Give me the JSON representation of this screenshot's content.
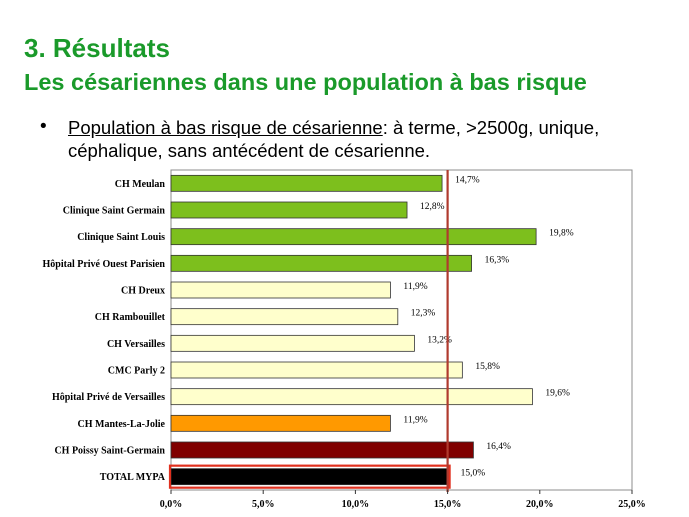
{
  "slide": {
    "title": "3. Résultats",
    "subtitle": "Les césariennes dans une population à bas risque",
    "bullet_marker": "•",
    "bullet_underlined": "Population à bas risque de césarienne",
    "bullet_rest": ": à terme, >2500g, unique, céphalique, sans antécédent de césarienne."
  },
  "chart_data": {
    "type": "bar",
    "orientation": "horizontal",
    "categories": [
      "CH Meulan",
      "Clinique Saint Germain",
      "Clinique Saint Louis",
      "Hôpital Privé Ouest Parisien",
      "CH Dreux",
      "CH Rambouillet",
      "CH Versailles",
      "CMC Parly 2",
      "Hôpital Privé de Versailles",
      "CH Mantes-La-Jolie",
      "CH Poissy Saint-Germain",
      "TOTAL MYPA"
    ],
    "values": [
      14.7,
      12.8,
      19.8,
      16.3,
      11.9,
      12.3,
      13.2,
      15.8,
      19.6,
      11.9,
      16.4,
      15.0
    ],
    "value_labels": [
      "14,7%",
      "12,8%",
      "19,8%",
      "16,3%",
      "11,9%",
      "12,3%",
      "13,2%",
      "15,8%",
      "19,6%",
      "11,9%",
      "16,4%",
      "15,0%"
    ],
    "bar_colors": [
      "#7dbf1d",
      "#7dbf1d",
      "#7dbf1d",
      "#7dbf1d",
      "#ffffcc",
      "#ffffcc",
      "#ffffcc",
      "#ffffcc",
      "#ffffcc",
      "#ff9900",
      "#800000",
      "#000000"
    ],
    "xlim": [
      0,
      25
    ],
    "xticks": [
      "0,0%",
      "5,0%",
      "10,0%",
      "15,0%",
      "20,0%",
      "25,0%"
    ],
    "reference_line": 15.0,
    "reference_line_color": "#b03a2e",
    "highlight_row": "TOTAL MYPA",
    "highlight_color": "#e0301e",
    "grid": false,
    "legend": "none"
  }
}
